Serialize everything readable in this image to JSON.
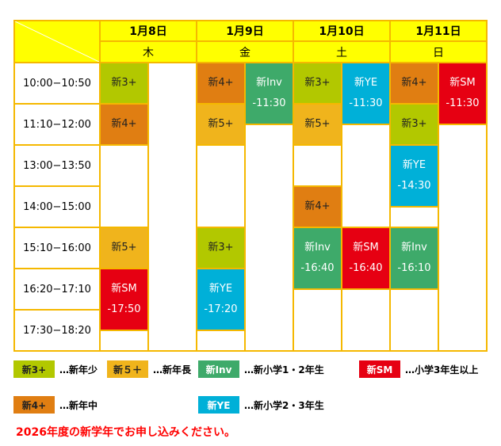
{
  "days": [
    {
      "date": "1月8日",
      "weekday": "木"
    },
    {
      "date": "1月9日",
      "weekday": "金"
    },
    {
      "date": "1月10日",
      "weekday": "土"
    },
    {
      "date": "1月11日",
      "weekday": "日"
    }
  ],
  "times": [
    "10:00−10:50",
    "11:10−12:00",
    "13:00−13:50",
    "14:00−15:00",
    "15:10−16:00",
    "16:20−17:10",
    "17:30−18:20"
  ],
  "colors": {
    "3": "#b2c800",
    "4": "#e07e12",
    "5": "#f0b41c",
    "inv": "#3eaa6a",
    "ye": "#00b0d8",
    "sm": "#e60012"
  },
  "events": [
    {
      "col": 0,
      "start": 0,
      "span": 1,
      "cls": "3",
      "name": "新3+",
      "end": ""
    },
    {
      "col": 0,
      "start": 1,
      "span": 1,
      "cls": "4",
      "name": "新4+",
      "end": ""
    },
    {
      "col": 0,
      "start": 4,
      "span": 1,
      "cls": "5",
      "name": "新5+",
      "end": ""
    },
    {
      "col": 0,
      "start": 5,
      "span": 1.5,
      "cls": "sm",
      "name": "新SM",
      "end": "-17:50"
    },
    {
      "col": 2,
      "start": 0,
      "span": 1,
      "cls": "4",
      "name": "新4+",
      "end": ""
    },
    {
      "col": 2,
      "start": 1,
      "span": 1,
      "cls": "5",
      "name": "新5+",
      "end": ""
    },
    {
      "col": 3,
      "start": 0,
      "span": 1.5,
      "cls": "inv",
      "name": "新Inv",
      "end": "-11:30"
    },
    {
      "col": 2,
      "start": 4,
      "span": 1,
      "cls": "3",
      "name": "新3+",
      "end": ""
    },
    {
      "col": 2,
      "start": 5,
      "span": 1.5,
      "cls": "ye",
      "name": "新YE",
      "end": "-17:20"
    },
    {
      "col": 4,
      "start": 0,
      "span": 1,
      "cls": "3",
      "name": "新3+",
      "end": ""
    },
    {
      "col": 4,
      "start": 1,
      "span": 1,
      "cls": "5",
      "name": "新5+",
      "end": ""
    },
    {
      "col": 5,
      "start": 0,
      "span": 1.5,
      "cls": "ye",
      "name": "新YE",
      "end": "-11:30"
    },
    {
      "col": 4,
      "start": 3,
      "span": 1,
      "cls": "4",
      "name": "新4+",
      "end": ""
    },
    {
      "col": 4,
      "start": 4,
      "span": 1.5,
      "cls": "inv",
      "name": "新Inv",
      "end": "-16:40"
    },
    {
      "col": 5,
      "start": 4,
      "span": 1.5,
      "cls": "sm",
      "name": "新SM",
      "end": "-16:40"
    },
    {
      "col": 6,
      "start": 0,
      "span": 1,
      "cls": "4",
      "name": "新4+",
      "end": ""
    },
    {
      "col": 7,
      "start": 0,
      "span": 1.5,
      "cls": "sm",
      "name": "新SM",
      "end": "-11:30"
    },
    {
      "col": 6,
      "start": 1,
      "span": 1,
      "cls": "3",
      "name": "新3+",
      "end": ""
    },
    {
      "col": 6,
      "start": 2,
      "span": 1.5,
      "cls": "ye",
      "name": "新YE",
      "end": "-14:30"
    },
    {
      "col": 6,
      "start": 4,
      "span": 1.5,
      "cls": "inv",
      "name": "新Inv",
      "end": "-16:10"
    }
  ],
  "legend": [
    {
      "cls": "3",
      "label": "新3+",
      "desc": "…新年少"
    },
    {
      "cls": "5",
      "label": "新５＋",
      "desc": "…新年長"
    },
    {
      "cls": "inv",
      "label": "新Inv",
      "desc": "…新小学1・2年生"
    },
    {
      "cls": "sm",
      "label": "新SM",
      "desc": "…小学3年生以上"
    },
    {
      "cls": "4",
      "label": "新4+",
      "desc": "…新年中"
    },
    {
      "cls": "ye",
      "label": "新YE",
      "desc": "…新小学2・3年生"
    }
  ],
  "note": "2026年度の新学年でお申し込みください。"
}
